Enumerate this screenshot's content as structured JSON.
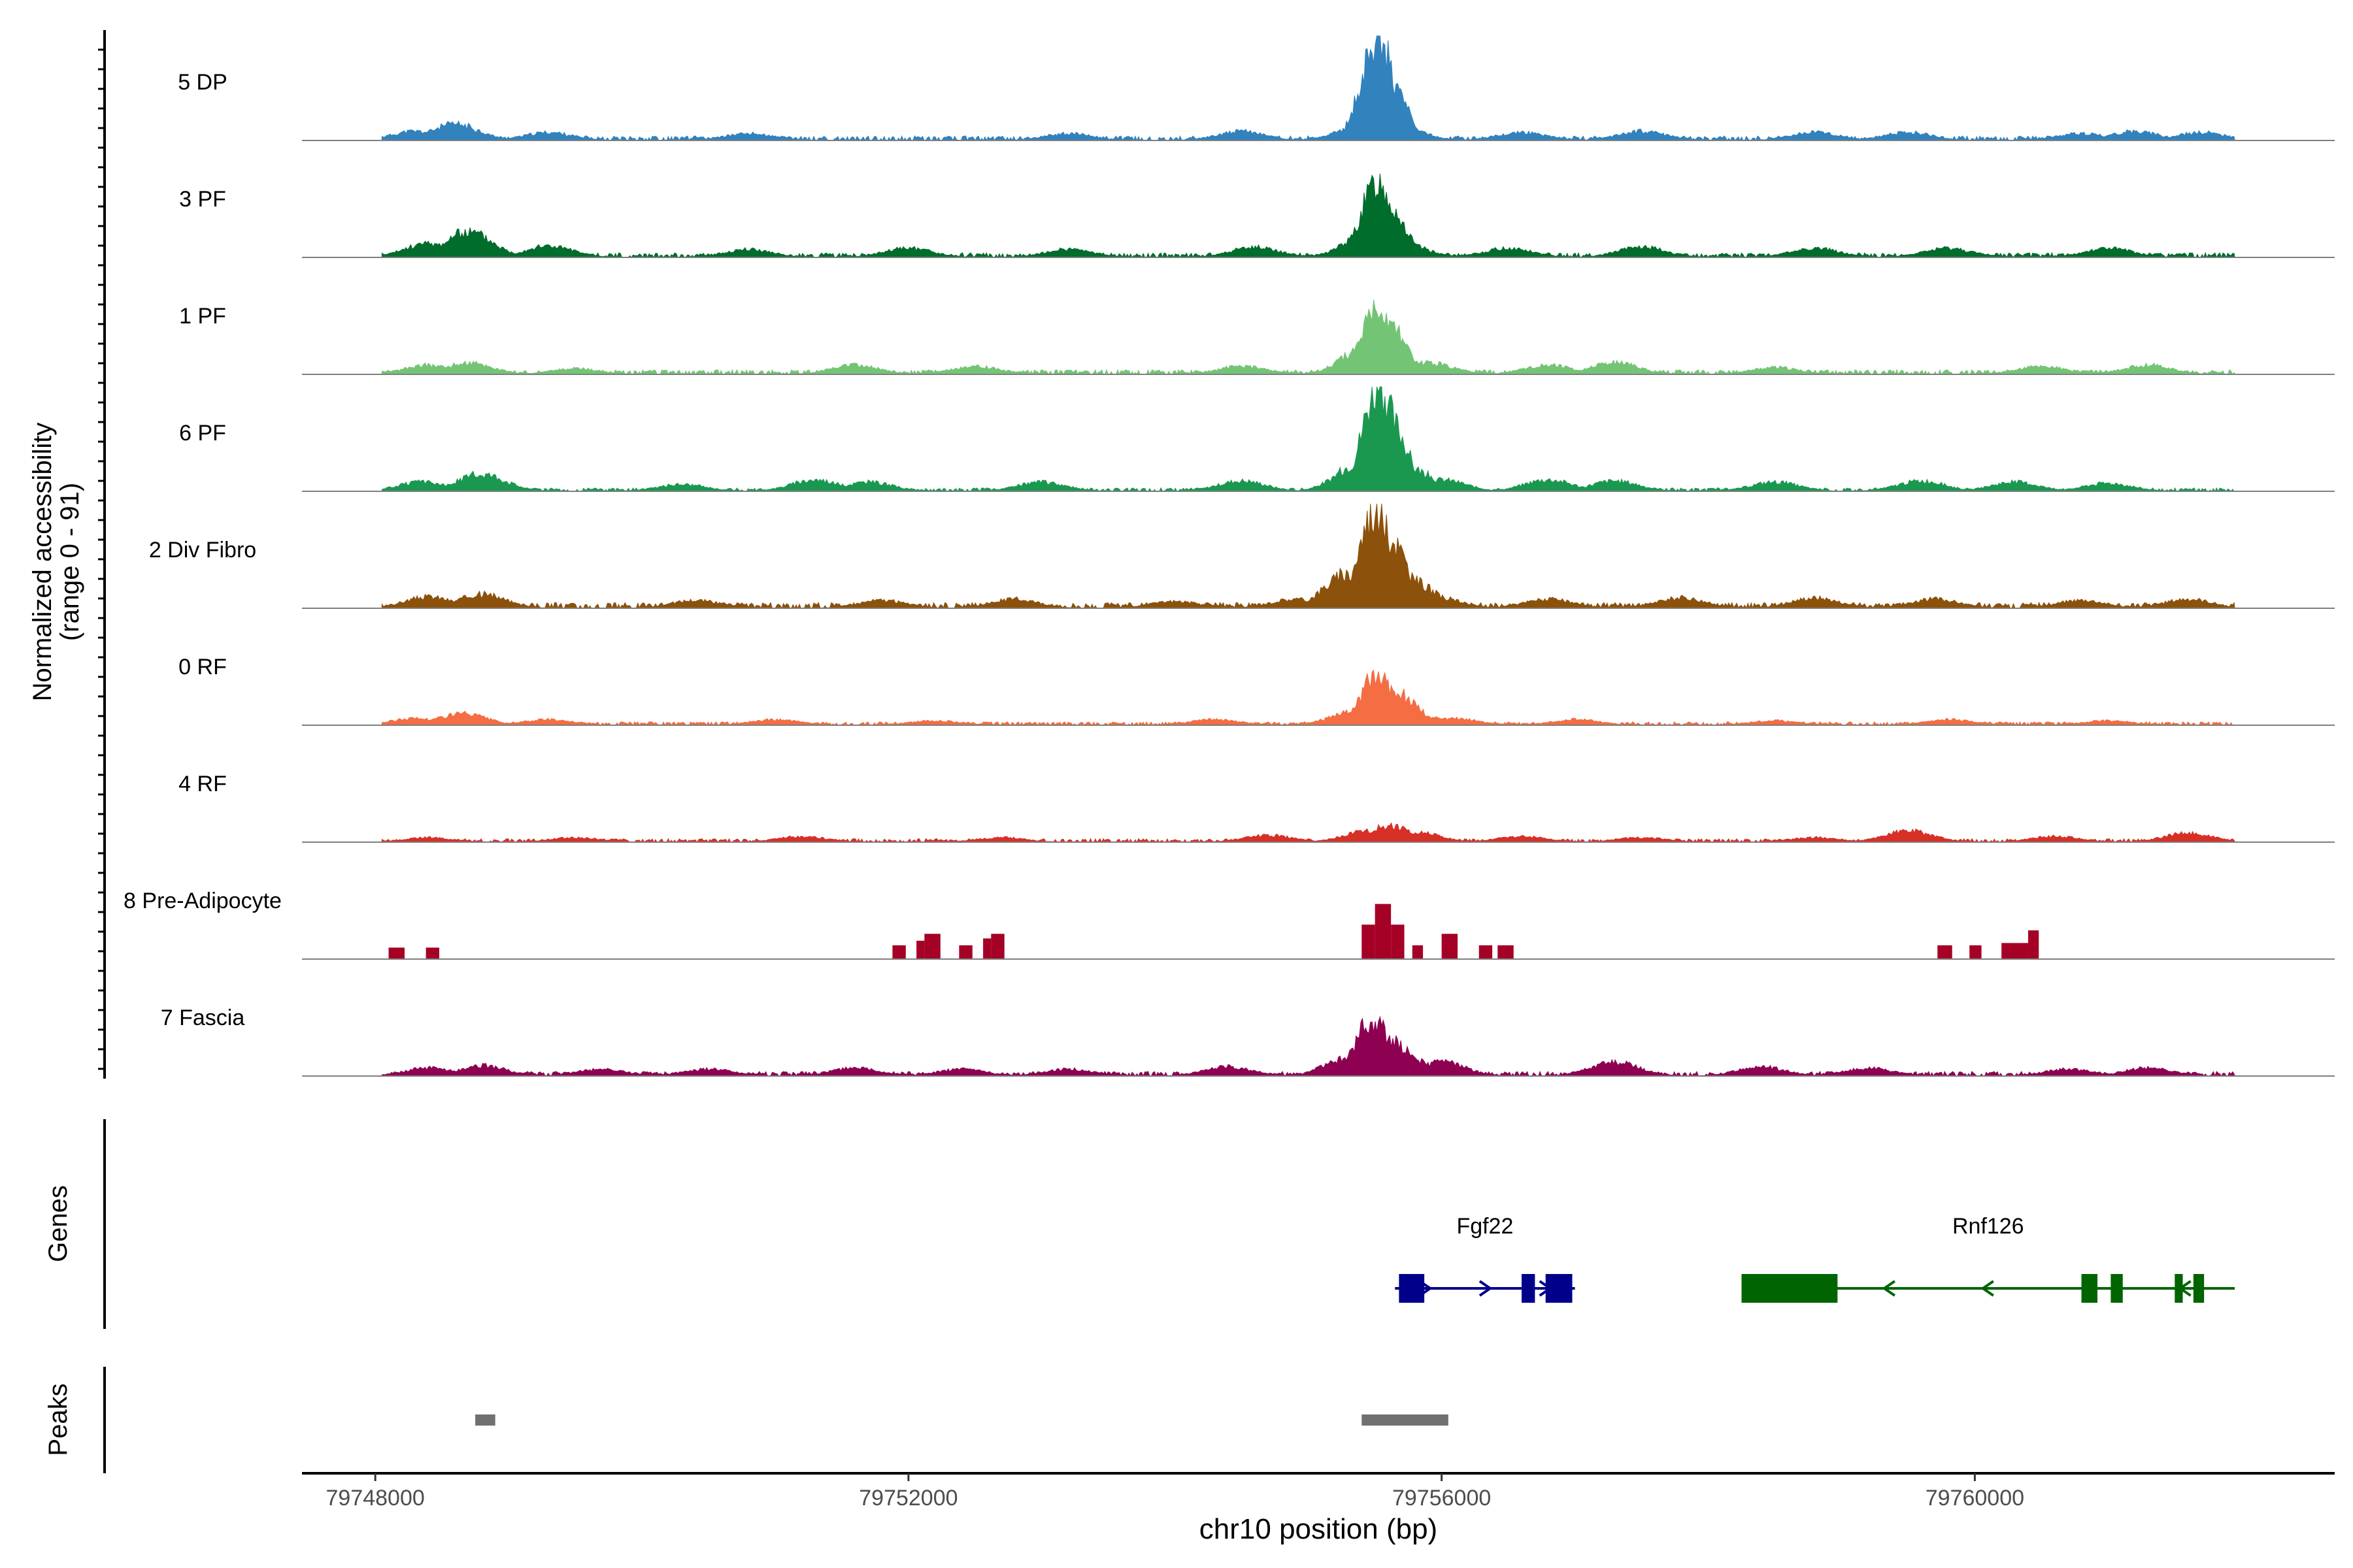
{
  "chart_data": {
    "type": "area",
    "title": "",
    "xlabel": "chr10 position (bp)",
    "ylabel": "Normalized accessibility",
    "ylabel_range": "(range 0 - 91)",
    "ylim": [
      0,
      91
    ],
    "xlim": [
      79747450,
      79762700
    ],
    "x_ticks": [
      79748000,
      79752000,
      79756000,
      79760000
    ],
    "x_tick_labels": [
      "79748000",
      "79752000",
      "79756000",
      "79760000"
    ],
    "tracks": [
      {
        "name": "5 DP",
        "color": "#3182BD",
        "baseline": 4,
        "noise_seed": 11,
        "points": [
          [
            79748300,
            8
          ],
          [
            79748600,
            14
          ],
          [
            79749300,
            7
          ],
          [
            79750800,
            6
          ],
          [
            79753200,
            6
          ],
          [
            79754500,
            8
          ],
          [
            79755450,
            18
          ],
          [
            79755520,
            90
          ],
          [
            79755600,
            55
          ],
          [
            79755700,
            10
          ],
          [
            79756600,
            7
          ],
          [
            79757500,
            8
          ],
          [
            79758800,
            7
          ],
          [
            79759500,
            7
          ],
          [
            79760800,
            6
          ],
          [
            79761200,
            8
          ],
          [
            79761700,
            7
          ]
        ]
      },
      {
        "name": "3 PF",
        "color": "#006D2C",
        "baseline": 4,
        "noise_seed": 23,
        "points": [
          [
            79748400,
            12
          ],
          [
            79748700,
            22
          ],
          [
            79749300,
            10
          ],
          [
            79750800,
            7
          ],
          [
            79752000,
            8
          ],
          [
            79753200,
            7
          ],
          [
            79754600,
            9
          ],
          [
            79755450,
            20
          ],
          [
            79755520,
            65
          ],
          [
            79755600,
            45
          ],
          [
            79755700,
            12
          ],
          [
            79756500,
            8
          ],
          [
            79757500,
            9
          ],
          [
            79758800,
            8
          ],
          [
            79759800,
            8
          ],
          [
            79761000,
            8
          ]
        ]
      },
      {
        "name": "1 PF",
        "color": "#74C476",
        "baseline": 4,
        "noise_seed": 37,
        "points": [
          [
            79748400,
            8
          ],
          [
            79748700,
            10
          ],
          [
            79749500,
            5
          ],
          [
            79751600,
            8
          ],
          [
            79752500,
            7
          ],
          [
            79754500,
            7
          ],
          [
            79755450,
            25
          ],
          [
            79755520,
            55
          ],
          [
            79755600,
            45
          ],
          [
            79755720,
            12
          ],
          [
            79755900,
            10
          ],
          [
            79756800,
            8
          ],
          [
            79757300,
            10
          ],
          [
            79758500,
            6
          ],
          [
            79760500,
            7
          ],
          [
            79761300,
            8
          ]
        ]
      },
      {
        "name": "6 PF",
        "color": "#1A9850",
        "baseline": 3,
        "noise_seed": 51,
        "points": [
          [
            79748350,
            8
          ],
          [
            79748800,
            15
          ],
          [
            79750300,
            6
          ],
          [
            79751300,
            10
          ],
          [
            79751700,
            8
          ],
          [
            79753000,
            8
          ],
          [
            79754500,
            9
          ],
          [
            79755400,
            25
          ],
          [
            79755530,
            92
          ],
          [
            79755620,
            60
          ],
          [
            79755750,
            20
          ],
          [
            79756000,
            10
          ],
          [
            79756800,
            10
          ],
          [
            79757300,
            9
          ],
          [
            79758500,
            8
          ],
          [
            79759600,
            9
          ],
          [
            79760300,
            8
          ],
          [
            79761000,
            7
          ]
        ]
      },
      {
        "name": "2 Div Fibro",
        "color": "#8C510A",
        "baseline": 5,
        "noise_seed": 67,
        "points": [
          [
            79748400,
            10
          ],
          [
            79748800,
            12
          ],
          [
            79750400,
            7
          ],
          [
            79751800,
            7
          ],
          [
            79752800,
            8
          ],
          [
            79754000,
            6
          ],
          [
            79754900,
            8
          ],
          [
            79755300,
            30
          ],
          [
            79755500,
            85
          ],
          [
            79755620,
            60
          ],
          [
            79755750,
            25
          ],
          [
            79755950,
            10
          ],
          [
            79756800,
            8
          ],
          [
            79757800,
            9
          ],
          [
            79758800,
            9
          ],
          [
            79759700,
            8
          ],
          [
            79760800,
            7
          ],
          [
            79761600,
            8
          ]
        ]
      },
      {
        "name": "0 RF",
        "color": "#F46D43",
        "baseline": 3,
        "noise_seed": 79,
        "points": [
          [
            79748300,
            6
          ],
          [
            79748650,
            10
          ],
          [
            79749300,
            5
          ],
          [
            79751000,
            5
          ],
          [
            79752200,
            4
          ],
          [
            79754300,
            5
          ],
          [
            79755350,
            12
          ],
          [
            79755520,
            45
          ],
          [
            79755620,
            30
          ],
          [
            79755780,
            10
          ],
          [
            79756100,
            6
          ],
          [
            79757000,
            5
          ],
          [
            79758500,
            4
          ],
          [
            79759800,
            5
          ],
          [
            79761000,
            4
          ]
        ]
      },
      {
        "name": "4 RF",
        "color": "#D73027",
        "baseline": 3,
        "noise_seed": 97,
        "points": [
          [
            79748400,
            4
          ],
          [
            79749500,
            4
          ],
          [
            79751200,
            5
          ],
          [
            79752700,
            4
          ],
          [
            79754700,
            6
          ],
          [
            79755450,
            10
          ],
          [
            79755600,
            14
          ],
          [
            79755800,
            9
          ],
          [
            79756600,
            5
          ],
          [
            79757500,
            4
          ],
          [
            79758800,
            4
          ],
          [
            79759500,
            10
          ],
          [
            79760600,
            5
          ],
          [
            79761600,
            8
          ]
        ]
      },
      {
        "name": "8 Pre-Adipocyte",
        "color": "#A50026",
        "baseline": 0,
        "noise_seed": 0,
        "bars": [
          [
            79748100,
            79748220,
            10
          ],
          [
            79748380,
            79748480,
            10
          ],
          [
            79751880,
            79751980,
            12
          ],
          [
            79752060,
            79752120,
            16
          ],
          [
            79752120,
            79752240,
            22
          ],
          [
            79752380,
            79752480,
            12
          ],
          [
            79752560,
            79752620,
            18
          ],
          [
            79752620,
            79752720,
            22
          ],
          [
            79755400,
            79755500,
            30
          ],
          [
            79755500,
            79755620,
            48
          ],
          [
            79755620,
            79755720,
            30
          ],
          [
            79755780,
            79755860,
            12
          ],
          [
            79756000,
            79756120,
            22
          ],
          [
            79756280,
            79756380,
            12
          ],
          [
            79756420,
            79756540,
            12
          ],
          [
            79759720,
            79759830,
            12
          ],
          [
            79759960,
            79760050,
            12
          ],
          [
            79760200,
            79760400,
            14
          ],
          [
            79760400,
            79760480,
            25
          ]
        ]
      },
      {
        "name": "7 Fascia",
        "color": "#8E0152",
        "baseline": 4,
        "noise_seed": 113,
        "points": [
          [
            79748400,
            7
          ],
          [
            79748800,
            9
          ],
          [
            79749700,
            6
          ],
          [
            79750500,
            6
          ],
          [
            79751600,
            7
          ],
          [
            79752400,
            6
          ],
          [
            79753200,
            6
          ],
          [
            79754400,
            8
          ],
          [
            79755300,
            15
          ],
          [
            79755480,
            50
          ],
          [
            79755600,
            30
          ],
          [
            79755750,
            15
          ],
          [
            79756000,
            12
          ],
          [
            79757300,
            12
          ],
          [
            79758400,
            8
          ],
          [
            79759200,
            7
          ],
          [
            79760700,
            6
          ],
          [
            79761300,
            7
          ]
        ]
      }
    ],
    "genes": [
      {
        "name": "Fgf22",
        "color": "#00008B",
        "strand": "+",
        "start": 79755650,
        "end": 79757000,
        "exons": [
          [
            79755680,
            79755870
          ],
          [
            79756600,
            79756700
          ],
          [
            79756780,
            79756980
          ]
        ]
      },
      {
        "name": "Rnf126",
        "color": "#006400",
        "strand": "-",
        "start": 79758250,
        "end": 79761950,
        "exons": [
          [
            79758250,
            79758970
          ],
          [
            79760800,
            79760920
          ],
          [
            79761020,
            79761110
          ],
          [
            79761500,
            79761560
          ],
          [
            79761640,
            79761720
          ]
        ]
      }
    ],
    "peaks": {
      "color": "#707070",
      "intervals": [
        [
          79748750,
          79748900
        ],
        [
          79755400,
          79756050
        ]
      ]
    },
    "panel_labels": {
      "genes": "Genes",
      "peaks": "Peaks"
    }
  }
}
